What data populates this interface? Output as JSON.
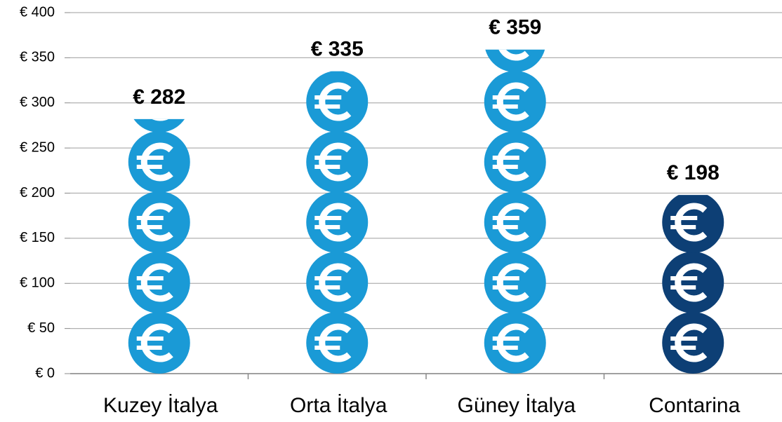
{
  "chart_data": {
    "type": "pictograph",
    "categories": [
      "Kuzey İtalya",
      "Orta İtalya",
      "Güney İtalya",
      "Contarina"
    ],
    "values": [
      282,
      335,
      359,
      198
    ],
    "value_labels": [
      "€ 282",
      "€ 335",
      "€ 359",
      "€ 198"
    ],
    "colors": [
      "#1a9ad6",
      "#1a9ad6",
      "#1a9ad6",
      "#0d3f75"
    ],
    "ylim": [
      0,
      400
    ],
    "yticks": [
      {
        "value": 0,
        "label": "€ 0"
      },
      {
        "value": 50,
        "label": "€ 50"
      },
      {
        "value": 100,
        "label": "€ 100"
      },
      {
        "value": 150,
        "label": "€ 150"
      },
      {
        "value": 200,
        "label": "€ 200"
      },
      {
        "value": 250,
        "label": "€ 250"
      },
      {
        "value": 300,
        "label": "€ 300"
      },
      {
        "value": 350,
        "label": "€ 350"
      },
      {
        "value": 400,
        "label": "€ 400"
      }
    ],
    "grid": true
  }
}
